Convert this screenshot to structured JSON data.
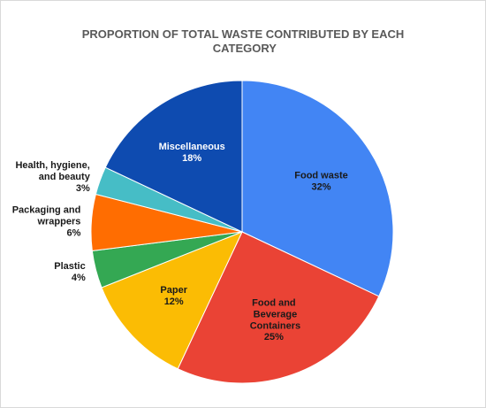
{
  "chart_data": {
    "type": "pie",
    "title": "PROPORTION OF TOTAL WASTE CONTRIBUTED BY EACH CATEGORY",
    "categories": [
      "Food waste",
      "Food and Beverage Containers",
      "Paper",
      "Plastic",
      "Packaging and wrappers",
      "Health, hygiene, and beauty",
      "Miscellaneous"
    ],
    "values": [
      32,
      25,
      12,
      4,
      6,
      3,
      18
    ],
    "value_labels": [
      "32%",
      "25%",
      "12%",
      "4%",
      "6%",
      "3%",
      "18%"
    ],
    "colors": [
      "#4285f4",
      "#ea4335",
      "#fbbc04",
      "#34a853",
      "#ff6d01",
      "#46bdc6",
      "#0e4bb0"
    ]
  }
}
